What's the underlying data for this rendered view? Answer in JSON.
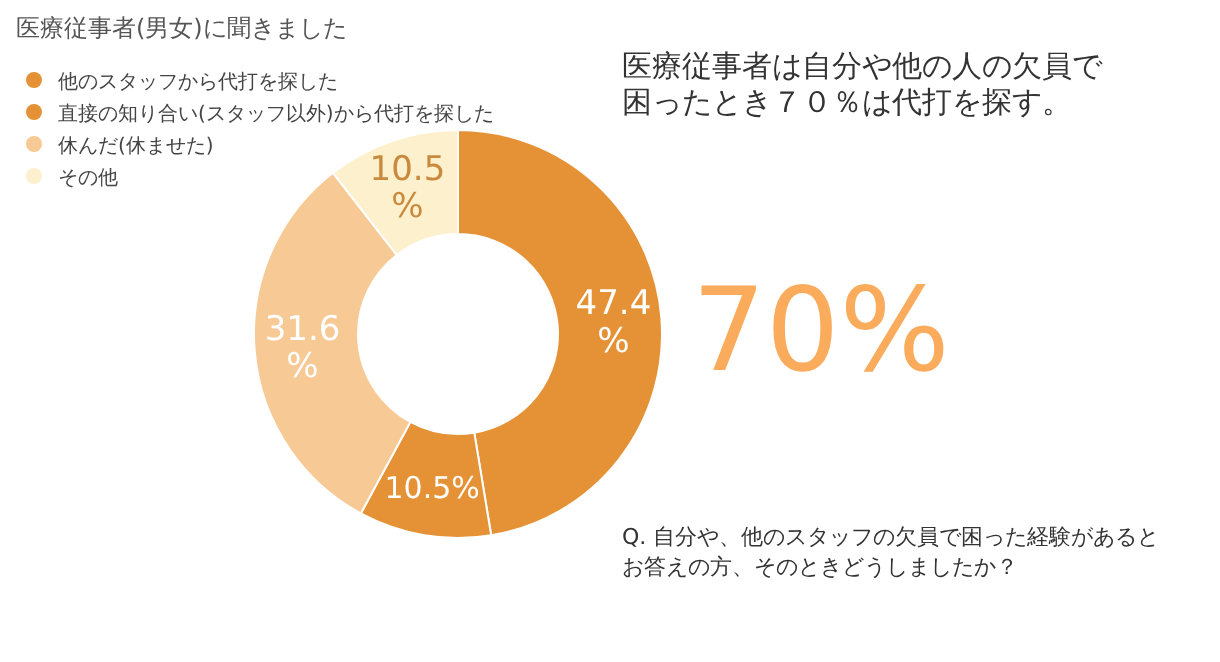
{
  "chart_data": {
    "type": "donut",
    "title": "医療従事者(男女)に聞きました",
    "subtitle": "医療従事者は自分や他の人の欠員で困ったとき７０％は代打を探す。",
    "categories": [
      "他のスタッフから代打を探した",
      "直接の知り合い(スタッフ以外)から代打を探した",
      "休んだ(休ませた)",
      "その他"
    ],
    "values": [
      47.4,
      10.5,
      31.6,
      10.5
    ],
    "colors": [
      "#e59236",
      "#e59236",
      "#f7c995",
      "#fdf0cc"
    ],
    "value_labels": [
      "47.4\n%",
      "10.5%",
      "31.6\n%",
      "10.5\n%"
    ],
    "annotations": [
      "70%",
      "Q. 自分や、他のスタッフの欠員で困った経験があるとお答えの方、そのときどうしましたか？"
    ],
    "legend": "top left"
  }
}
